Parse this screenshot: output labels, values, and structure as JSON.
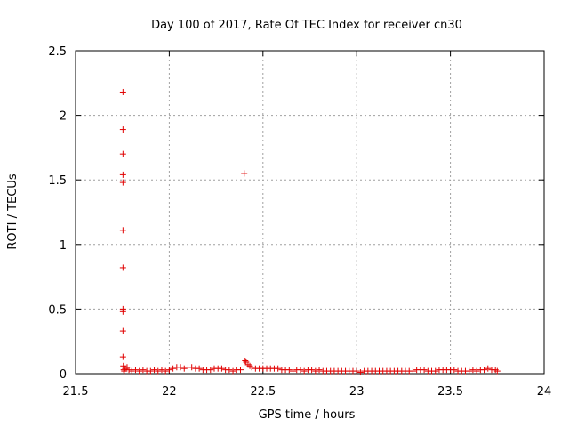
{
  "chart_data": {
    "type": "scatter",
    "title": "Day 100 of 2017, Rate Of TEC Index for receiver cn30",
    "xlabel": "GPS time / hours",
    "ylabel": "ROTI / TECUs",
    "xlim": [
      21.5,
      24
    ],
    "ylim": [
      0,
      2.5
    ],
    "xticks": [
      "21.5",
      "22",
      "22.5",
      "23",
      "23.5",
      "24"
    ],
    "yticks": [
      "0",
      "0.5",
      "1",
      "1.5",
      "2",
      "2.5"
    ],
    "grid": true,
    "marker": "plus",
    "color": "#e00000",
    "series": [
      {
        "points": [
          [
            21.753,
            2.18
          ],
          [
            21.753,
            1.89
          ],
          [
            21.753,
            1.7
          ],
          [
            21.753,
            1.54
          ],
          [
            21.753,
            1.48
          ],
          [
            21.753,
            1.11
          ],
          [
            21.753,
            0.82
          ],
          [
            21.753,
            0.5
          ],
          [
            21.753,
            0.48
          ],
          [
            21.753,
            0.33
          ],
          [
            21.753,
            0.13
          ],
          [
            21.755,
            0.06
          ],
          [
            21.757,
            0.03
          ],
          [
            21.76,
            0.02
          ],
          [
            21.765,
            0.04
          ],
          [
            21.775,
            0.05
          ],
          [
            21.785,
            0.03
          ],
          [
            21.8,
            0.02
          ],
          [
            21.82,
            0.03
          ],
          [
            21.84,
            0.02
          ],
          [
            21.86,
            0.03
          ],
          [
            21.88,
            0.02
          ],
          [
            21.9,
            0.02
          ],
          [
            21.92,
            0.03
          ],
          [
            21.94,
            0.02
          ],
          [
            21.96,
            0.03
          ],
          [
            21.98,
            0.02
          ],
          [
            22.0,
            0.03
          ],
          [
            22.02,
            0.04
          ],
          [
            22.04,
            0.05
          ],
          [
            22.06,
            0.05
          ],
          [
            22.08,
            0.04
          ],
          [
            22.1,
            0.05
          ],
          [
            22.12,
            0.05
          ],
          [
            22.14,
            0.04
          ],
          [
            22.16,
            0.04
          ],
          [
            22.18,
            0.03
          ],
          [
            22.2,
            0.03
          ],
          [
            22.22,
            0.03
          ],
          [
            22.24,
            0.04
          ],
          [
            22.26,
            0.04
          ],
          [
            22.28,
            0.04
          ],
          [
            22.3,
            0.03
          ],
          [
            22.32,
            0.03
          ],
          [
            22.34,
            0.02
          ],
          [
            22.36,
            0.03
          ],
          [
            22.38,
            0.03
          ],
          [
            22.4,
            1.55
          ],
          [
            22.405,
            0.1
          ],
          [
            22.41,
            0.09
          ],
          [
            22.42,
            0.07
          ],
          [
            22.43,
            0.06
          ],
          [
            22.44,
            0.05
          ],
          [
            22.46,
            0.04
          ],
          [
            22.48,
            0.04
          ],
          [
            22.5,
            0.04
          ],
          [
            22.52,
            0.04
          ],
          [
            22.54,
            0.04
          ],
          [
            22.56,
            0.04
          ],
          [
            22.58,
            0.04
          ],
          [
            22.6,
            0.03
          ],
          [
            22.62,
            0.03
          ],
          [
            22.64,
            0.03
          ],
          [
            22.66,
            0.02
          ],
          [
            22.68,
            0.03
          ],
          [
            22.7,
            0.03
          ],
          [
            22.72,
            0.02
          ],
          [
            22.74,
            0.03
          ],
          [
            22.76,
            0.03
          ],
          [
            22.78,
            0.02
          ],
          [
            22.8,
            0.03
          ],
          [
            22.82,
            0.02
          ],
          [
            22.84,
            0.02
          ],
          [
            22.86,
            0.02
          ],
          [
            22.88,
            0.02
          ],
          [
            22.9,
            0.02
          ],
          [
            22.92,
            0.02
          ],
          [
            22.94,
            0.02
          ],
          [
            22.96,
            0.02
          ],
          [
            22.98,
            0.02
          ],
          [
            23.0,
            0.02
          ],
          [
            23.02,
            0.01
          ],
          [
            23.04,
            0.02
          ],
          [
            23.06,
            0.02
          ],
          [
            23.08,
            0.02
          ],
          [
            23.1,
            0.02
          ],
          [
            23.12,
            0.02
          ],
          [
            23.14,
            0.02
          ],
          [
            23.16,
            0.02
          ],
          [
            23.18,
            0.02
          ],
          [
            23.2,
            0.02
          ],
          [
            23.22,
            0.02
          ],
          [
            23.24,
            0.02
          ],
          [
            23.26,
            0.02
          ],
          [
            23.28,
            0.02
          ],
          [
            23.3,
            0.02
          ],
          [
            23.32,
            0.03
          ],
          [
            23.34,
            0.03
          ],
          [
            23.36,
            0.03
          ],
          [
            23.38,
            0.02
          ],
          [
            23.4,
            0.02
          ],
          [
            23.42,
            0.02
          ],
          [
            23.44,
            0.03
          ],
          [
            23.46,
            0.03
          ],
          [
            23.48,
            0.03
          ],
          [
            23.5,
            0.03
          ],
          [
            23.52,
            0.03
          ],
          [
            23.54,
            0.02
          ],
          [
            23.56,
            0.02
          ],
          [
            23.58,
            0.02
          ],
          [
            23.6,
            0.02
          ],
          [
            23.62,
            0.03
          ],
          [
            23.64,
            0.02
          ],
          [
            23.66,
            0.03
          ],
          [
            23.68,
            0.03
          ],
          [
            23.7,
            0.04
          ],
          [
            23.72,
            0.03
          ],
          [
            23.74,
            0.03
          ],
          [
            23.75,
            0.02
          ]
        ]
      }
    ]
  }
}
